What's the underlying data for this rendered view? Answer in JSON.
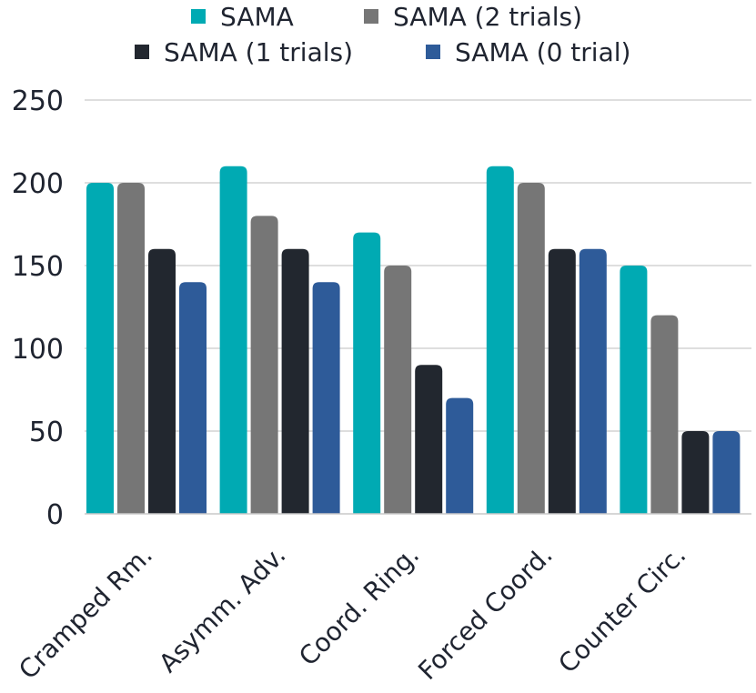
{
  "chart_data": {
    "type": "bar",
    "title": "",
    "xlabel": "",
    "ylabel": "",
    "ylim": [
      0,
      250
    ],
    "yticks": [
      0,
      50,
      100,
      150,
      200,
      250
    ],
    "grid": true,
    "legend_position": "top",
    "categories": [
      "Cramped Rm.",
      "Asymm. Adv.",
      "Coord. Ring.",
      "Forced Coord.",
      "Counter Circ."
    ],
    "series": [
      {
        "name": "SAMA",
        "color": "#00aab3",
        "values": [
          200,
          210,
          170,
          210,
          150
        ]
      },
      {
        "name": "SAMA (2 trials)",
        "color": "#767676",
        "values": [
          200,
          180,
          150,
          200,
          120
        ]
      },
      {
        "name": "SAMA (1 trials)",
        "color": "#22272f",
        "values": [
          160,
          160,
          90,
          160,
          50
        ]
      },
      {
        "name": "SAMA (0 trial)",
        "color": "#2e5b99",
        "values": [
          140,
          140,
          70,
          160,
          50
        ]
      }
    ]
  }
}
